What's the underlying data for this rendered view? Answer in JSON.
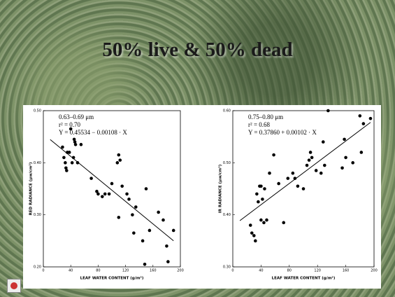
{
  "slide": {
    "title": "50% live & 50% dead"
  },
  "chart_data": [
    {
      "type": "scatter",
      "color": "#000000",
      "x_label": "LEAF WATER CONTENT (g/m²)",
      "y_label": "RED RADIANCE (μw/cm²)",
      "annotations": [
        "0.63–0.69 μm",
        "r² = 0.70",
        "Y = 0.45534 − 0.00108 · X"
      ],
      "xlim": [
        0,
        200
      ],
      "xticks": [
        0,
        40,
        80,
        120,
        160,
        200
      ],
      "ylim": [
        0.2,
        0.5
      ],
      "yticks": [
        {
          "value": 0.2,
          "label": "0.20"
        },
        {
          "value": 0.3,
          "label": "0.30"
        },
        {
          "value": 0.4,
          "label": "0.40"
        },
        {
          "value": 0.5,
          "label": "0.50"
        }
      ],
      "x": [
        28,
        30,
        32,
        33,
        34,
        35,
        38,
        40,
        42,
        44,
        45,
        46,
        47,
        50,
        55,
        70,
        78,
        80,
        86,
        90,
        96,
        100,
        108,
        110,
        112,
        110,
        115,
        122,
        125,
        130,
        132,
        135,
        145,
        148,
        150,
        155,
        168,
        175,
        180,
        182,
        190
      ],
      "values": [
        0.43,
        0.41,
        0.4,
        0.39,
        0.385,
        0.42,
        0.42,
        0.465,
        0.4,
        0.41,
        0.445,
        0.44,
        0.435,
        0.4,
        0.435,
        0.37,
        0.345,
        0.34,
        0.335,
        0.34,
        0.34,
        0.36,
        0.4,
        0.415,
        0.405,
        0.295,
        0.355,
        0.34,
        0.33,
        0.3,
        0.265,
        0.315,
        0.25,
        0.205,
        0.35,
        0.27,
        0.305,
        0.29,
        0.24,
        0.21,
        0.27
      ],
      "fit": {
        "intercept": 0.45534,
        "slope": -0.00108,
        "x": [
          10,
          190
        ]
      }
    },
    {
      "type": "scatter",
      "color": "#000000",
      "x_label": "LEAF WATER CONTENT (g/m²)",
      "y_label": "IR RADIANCE (μw/cm²)",
      "annotations": [
        "0.75–0.80 μm",
        "r² = 0.68",
        "Y = 0.37860 + 0.00102 · X"
      ],
      "xlim": [
        0,
        200
      ],
      "xticks": [
        0,
        40,
        80,
        120,
        160,
        200
      ],
      "ylim": [
        0.3,
        0.6
      ],
      "yticks": [
        {
          "value": 0.3,
          "label": "0.30"
        },
        {
          "value": 0.4,
          "label": "0.40"
        },
        {
          "value": 0.5,
          "label": "0.50"
        },
        {
          "value": 0.6,
          "label": "0.60"
        }
      ],
      "x": [
        25,
        27,
        30,
        32,
        34,
        36,
        38,
        40,
        40,
        42,
        44,
        45,
        48,
        52,
        58,
        65,
        72,
        78,
        85,
        88,
        92,
        100,
        105,
        108,
        110,
        112,
        118,
        125,
        128,
        130,
        135,
        155,
        158,
        160,
        170,
        180,
        182,
        185,
        195
      ],
      "values": [
        0.38,
        0.365,
        0.36,
        0.35,
        0.44,
        0.425,
        0.455,
        0.39,
        0.455,
        0.43,
        0.385,
        0.45,
        0.39,
        0.48,
        0.515,
        0.46,
        0.385,
        0.47,
        0.48,
        0.47,
        0.455,
        0.45,
        0.495,
        0.505,
        0.52,
        0.51,
        0.485,
        0.48,
        0.54,
        0.495,
        0.6,
        0.49,
        0.545,
        0.51,
        0.5,
        0.59,
        0.52,
        0.575,
        0.585
      ],
      "fit": {
        "intercept": 0.3786,
        "slope": 0.00102,
        "x": [
          10,
          195
        ]
      }
    }
  ]
}
